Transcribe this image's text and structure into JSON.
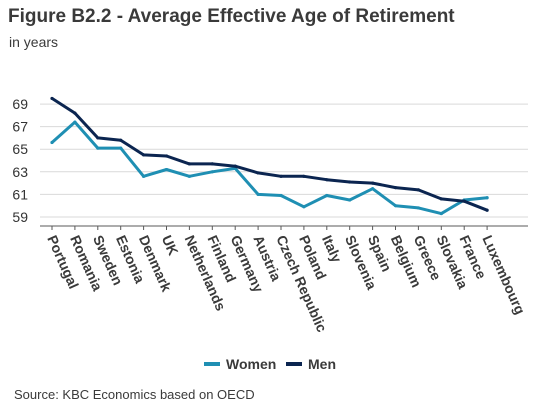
{
  "header": {
    "title": "Figure B2.2 - Average Effective Age of Retirement",
    "subtitle": "in years"
  },
  "footer": {
    "source": "Source: KBC Economics based on OECD"
  },
  "colors": {
    "women": "#1f8fb3",
    "men": "#0b2550",
    "axis": "#333333",
    "grid": "#d9d9d9"
  },
  "chart_data": {
    "type": "line",
    "categories": [
      "Portugal",
      "Romania",
      "Sweden",
      "Estonia",
      "Denmark",
      "UK",
      "Netherlands",
      "Finland",
      "Germany",
      "Austria",
      "Czech Republic",
      "Poland",
      "Italy",
      "Slovenia",
      "Spain",
      "Belgium",
      "Greece",
      "Slovakia",
      "France",
      "Luxembourg"
    ],
    "yticks": [
      59,
      61,
      63,
      65,
      67,
      69
    ],
    "ylim": [
      58.2,
      70.6
    ],
    "grid": true,
    "legend_position": "bottom",
    "series": [
      {
        "name": "Women",
        "color": "#1f8fb3",
        "values": [
          65.6,
          67.4,
          65.1,
          65.1,
          62.6,
          63.2,
          62.6,
          63.0,
          63.3,
          61.0,
          60.9,
          59.9,
          60.9,
          60.5,
          61.5,
          60.0,
          59.8,
          59.3,
          60.5,
          60.7
        ]
      },
      {
        "name": "Men",
        "color": "#0b2550",
        "values": [
          69.5,
          68.2,
          66.0,
          65.8,
          64.5,
          64.4,
          63.7,
          63.7,
          63.5,
          62.9,
          62.6,
          62.6,
          62.3,
          62.1,
          62.0,
          61.6,
          61.4,
          60.6,
          60.4,
          59.6
        ]
      }
    ]
  }
}
